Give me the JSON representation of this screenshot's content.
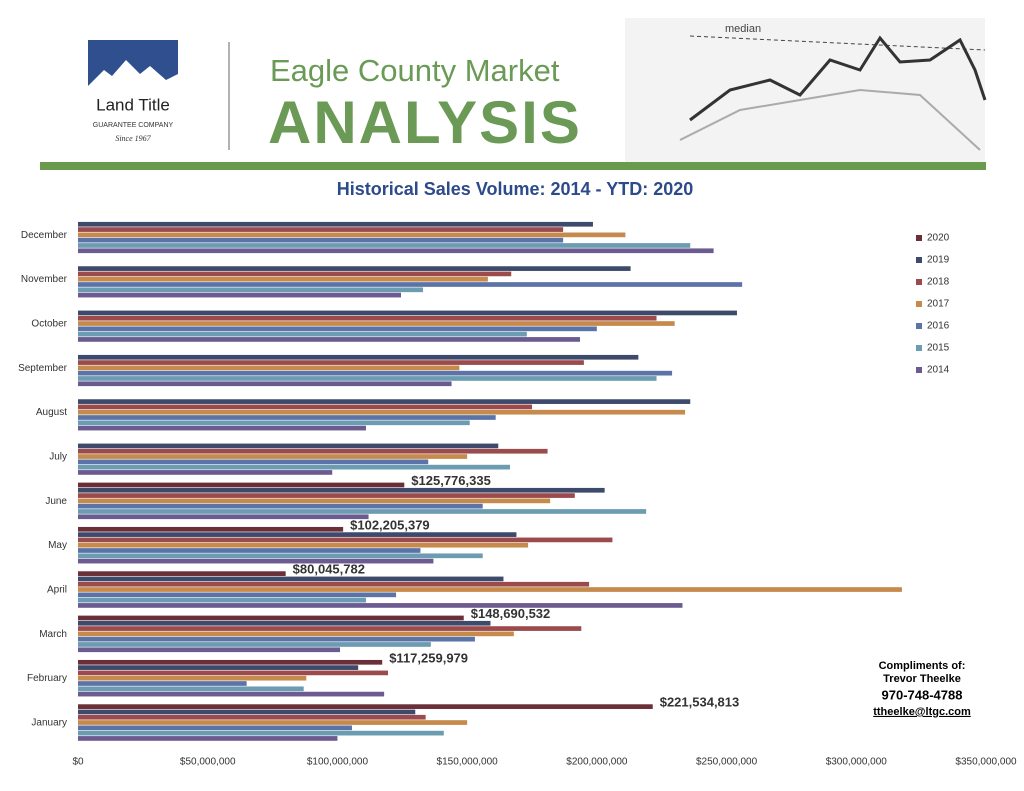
{
  "header": {
    "brand": "Land Title",
    "brand_sub": "GUARANTEE COMPANY",
    "brand_since": "Since 1967",
    "title_line1": "Eagle County Market",
    "title_line2": "ANALYSIS",
    "image_label": "median"
  },
  "contact": {
    "intro": "Compliments of:",
    "name": "Trevor Theelke",
    "phone": "970-748-4788",
    "email": "ttheelke@ltgc.com"
  },
  "chart_data": {
    "type": "hbar",
    "title": "Historical Sales Volume: 2014 - YTD: 2020",
    "categories": [
      "January",
      "February",
      "March",
      "April",
      "May",
      "June",
      "July",
      "August",
      "September",
      "October",
      "November",
      "December"
    ],
    "series": [
      {
        "name": "2020",
        "color": "#6b2f38",
        "values": [
          221534813,
          117259979,
          148690532,
          80045782,
          102205379,
          125776335,
          null,
          null,
          null,
          null,
          null,
          null
        ],
        "value_labels": [
          "$221,534,813",
          "$117,259,979",
          "$148,690,532",
          "$80,045,782",
          "$102,205,379",
          "$125,776,335",
          null,
          null,
          null,
          null,
          null,
          null
        ]
      },
      {
        "name": "2019",
        "color": "#3e4a6c",
        "values": [
          130000000,
          108000000,
          159000000,
          164000000,
          169000000,
          203000000,
          162000000,
          236000000,
          216000000,
          254000000,
          213000000,
          198500000
        ]
      },
      {
        "name": "2018",
        "color": "#9c4b4d",
        "values": [
          134000000,
          119500000,
          194000000,
          197000000,
          206000000,
          191500000,
          181000000,
          175000000,
          195000000,
          223000000,
          167000000,
          187000000
        ]
      },
      {
        "name": "2017",
        "color": "#c68b4c",
        "values": [
          150000000,
          88000000,
          168000000,
          317600000,
          173500000,
          182000000,
          150000000,
          234000000,
          147000000,
          230000000,
          158000000,
          211000000
        ]
      },
      {
        "name": "2016",
        "color": "#5c73a8",
        "values": [
          105600000,
          65000000,
          153000000,
          122600000,
          132000000,
          156000000,
          135000000,
          161000000,
          229000000,
          200000000,
          256000000,
          187000000
        ]
      },
      {
        "name": "2015",
        "color": "#6b9cb1",
        "values": [
          141000000,
          87000000,
          136000000,
          111000000,
          156000000,
          219000000,
          166500000,
          151000000,
          223000000,
          173000000,
          133000000,
          236000000
        ]
      },
      {
        "name": "2014",
        "color": "#6b5b91",
        "values": [
          100000000,
          118000000,
          101000000,
          233000000,
          137000000,
          112000000,
          98000000,
          111000000,
          144000000,
          193500000,
          124500000,
          245000000
        ]
      }
    ],
    "xlim": [
      0,
      350000000
    ],
    "xticks": [
      {
        "value": 0,
        "label": "$0"
      },
      {
        "value": 50000000,
        "label": "$50,000,000"
      },
      {
        "value": 100000000,
        "label": "$100,000,000"
      },
      {
        "value": 150000000,
        "label": "$150,000,000"
      },
      {
        "value": 200000000,
        "label": "$200,000,000"
      },
      {
        "value": 250000000,
        "label": "$250,000,000"
      },
      {
        "value": 300000000,
        "label": "$300,000,000"
      },
      {
        "value": 350000000,
        "label": "$350,000,000"
      }
    ],
    "grid": false,
    "legend": "right"
  }
}
